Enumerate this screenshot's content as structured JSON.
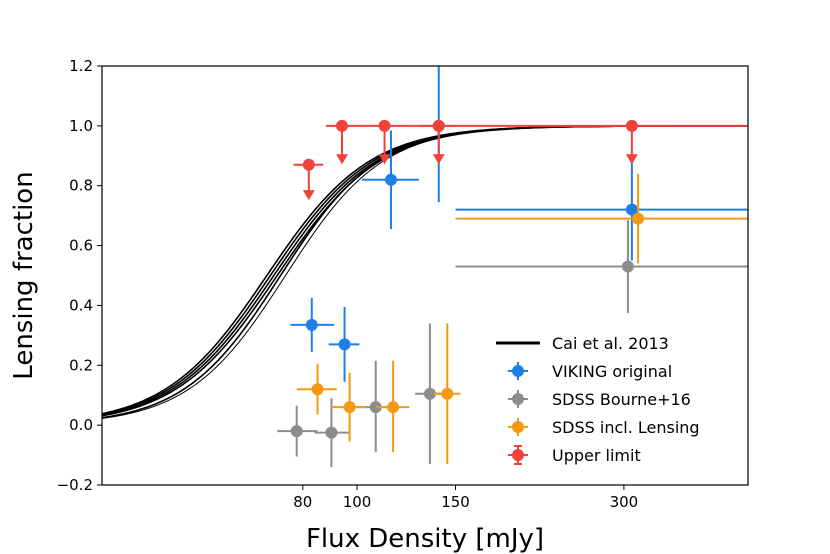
{
  "chart_data": {
    "type": "scatter",
    "title": "",
    "xlabel": "Flux Density [mJy]",
    "ylabel": "Lensing fraction",
    "xscale": "log",
    "xlim": [
      35,
      500
    ],
    "ylim": [
      -0.2,
      1.2
    ],
    "xticks": [
      {
        "value": 80,
        "label": "80"
      },
      {
        "value": 100,
        "label": "100"
      },
      {
        "value": 150,
        "label": "150"
      },
      {
        "value": 300,
        "label": "300"
      }
    ],
    "yticks": [
      {
        "value": -0.2,
        "label": "−0.2"
      },
      {
        "value": 0.0,
        "label": "0.0"
      },
      {
        "value": 0.2,
        "label": "0.2"
      },
      {
        "value": 0.4,
        "label": "0.4"
      },
      {
        "value": 0.6,
        "label": "0.6"
      },
      {
        "value": 0.8,
        "label": "0.8"
      },
      {
        "value": 1.0,
        "label": "1.0"
      },
      {
        "value": 1.2,
        "label": "1.2"
      }
    ],
    "grid": false,
    "legend_position": "lower-right",
    "legend": [
      {
        "label": "Cai et al. 2013",
        "kind": "line",
        "color": "#000000"
      },
      {
        "label": "VIKING original",
        "kind": "errorbar",
        "color": "#1f7fe8"
      },
      {
        "label": "SDSS Bourne+16",
        "kind": "errorbar",
        "color": "#8c8c8c"
      },
      {
        "label": "SDSS incl. Lensing",
        "kind": "errorbar",
        "color": "#f59a10"
      },
      {
        "label": "Upper limit",
        "kind": "errorbar",
        "color": "#f0423a"
      }
    ],
    "model_curves": {
      "label": "Cai et al. 2013",
      "color": "#000000",
      "midpoints": [
        69,
        70,
        71,
        72,
        73,
        74.5
      ],
      "widths": [
        0.21,
        0.21,
        0.21,
        0.21,
        0.2,
        0.2
      ]
    },
    "series": [
      {
        "name": "VIKING original",
        "color": "#1f7fe8",
        "points": [
          {
            "x": 83,
            "y": 0.335,
            "xlo": 76,
            "xhi": 91,
            "ylo": 0.245,
            "yhi": 0.425
          },
          {
            "x": 95,
            "y": 0.27,
            "xlo": 89,
            "xhi": 101,
            "ylo": 0.145,
            "yhi": 0.395
          },
          {
            "x": 115,
            "y": 0.82,
            "xlo": 102,
            "xhi": 129,
            "ylo": 0.655,
            "yhi": 0.985
          },
          {
            "x": 140,
            "y": 1.0,
            "xlo": 130,
            "xhi": 150,
            "ylo": 0.745,
            "yhi": 1.2
          },
          {
            "x": 310,
            "y": 0.72,
            "xlo": 150,
            "xhi": 500,
            "ylo": 0.55,
            "yhi": 0.89
          }
        ]
      },
      {
        "name": "SDSS Bourne+16",
        "color": "#8c8c8c",
        "points": [
          {
            "x": 78,
            "y": -0.02,
            "xlo": 72,
            "xhi": 85,
            "ylo": -0.105,
            "yhi": 0.065
          },
          {
            "x": 90,
            "y": -0.025,
            "xlo": 84,
            "xhi": 97,
            "ylo": -0.14,
            "yhi": 0.09
          },
          {
            "x": 108,
            "y": 0.06,
            "xlo": 100,
            "xhi": 116,
            "ylo": -0.09,
            "yhi": 0.215
          },
          {
            "x": 135,
            "y": 0.105,
            "xlo": 127,
            "xhi": 143,
            "ylo": -0.13,
            "yhi": 0.34
          },
          {
            "x": 305,
            "y": 0.53,
            "xlo": 150,
            "xhi": 500,
            "ylo": 0.375,
            "yhi": 0.685
          }
        ]
      },
      {
        "name": "SDSS incl. Lensing",
        "color": "#f59a10",
        "points": [
          {
            "x": 85,
            "y": 0.12,
            "xlo": 78,
            "xhi": 92,
            "ylo": 0.035,
            "yhi": 0.205
          },
          {
            "x": 97,
            "y": 0.06,
            "xlo": 90,
            "xhi": 104,
            "ylo": -0.055,
            "yhi": 0.175
          },
          {
            "x": 116,
            "y": 0.06,
            "xlo": 108,
            "xhi": 124,
            "ylo": -0.09,
            "yhi": 0.215
          },
          {
            "x": 145,
            "y": 0.105,
            "xlo": 137,
            "xhi": 153,
            "ylo": -0.13,
            "yhi": 0.34
          },
          {
            "x": 318,
            "y": 0.69,
            "xlo": 150,
            "xhi": 500,
            "ylo": 0.54,
            "yhi": 0.84
          }
        ]
      }
    ],
    "upper_limits": {
      "name": "Upper limit",
      "color": "#f0423a",
      "points": [
        {
          "x": 82,
          "y": 0.87,
          "xlo": 77,
          "xhi": 87,
          "arrow_to": 0.755
        },
        {
          "x": 94,
          "y": 1.0,
          "xlo": 88,
          "xhi": 102,
          "arrow_to": 0.875
        },
        {
          "x": 112,
          "y": 1.0,
          "xlo": 102,
          "xhi": 126,
          "arrow_to": 0.875
        },
        {
          "x": 140,
          "y": 1.0,
          "xlo": 126,
          "xhi": 150,
          "arrow_to": 0.875
        },
        {
          "x": 310,
          "y": 1.0,
          "xlo": 150,
          "xhi": 500,
          "arrow_to": 0.875
        }
      ]
    }
  }
}
